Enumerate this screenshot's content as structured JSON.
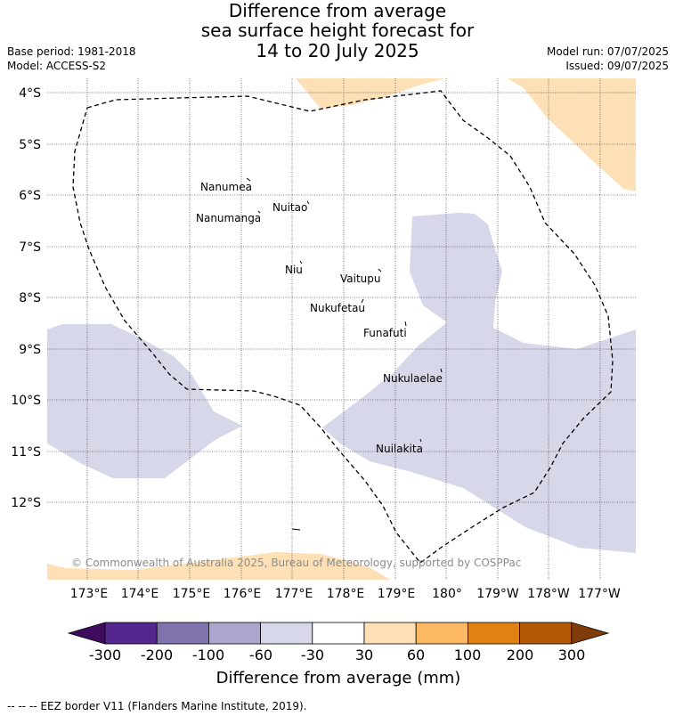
{
  "title": {
    "line1": "Difference from average",
    "line2": "sea surface height forecast for",
    "line3": "14 to 20 July 2025"
  },
  "meta": {
    "base_period": "Base period: 1981-2018",
    "model": "Model: ACCESS-S2",
    "model_run": "Model run: 07/07/2025",
    "issued": "Issued: 09/07/2025"
  },
  "map": {
    "lat_labels": [
      "4°S",
      "5°S",
      "6°S",
      "7°S",
      "8°S",
      "9°S",
      "10°S",
      "11°S",
      "12°S"
    ],
    "lon_labels": [
      "173°E",
      "174°E",
      "175°E",
      "176°E",
      "177°E",
      "178°E",
      "179°E",
      "180°",
      "179°W",
      "178°W",
      "177°W"
    ],
    "places": [
      "Nanumea",
      "Nuitao",
      "Nanumanga",
      "Niu",
      "Vaitupu",
      "Nukufetau",
      "Funafuti",
      "Nukulaelae",
      "Nuilakita"
    ],
    "copyright": "© Commonwealth of Australia 2025, Bureau of Meteorology, supported by COSPPac",
    "colors": {
      "negative_light": "#d7d7ea",
      "positive_light": "#fde0b6",
      "eez_border": "#000000"
    }
  },
  "colorbar": {
    "labels": [
      "-300",
      "-200",
      "-100",
      "-60",
      "-30",
      "30",
      "60",
      "100",
      "200",
      "300"
    ],
    "colors": [
      "#3f0b5c",
      "#54278f",
      "#7f72ad",
      "#aca6cf",
      "#d7d7ea",
      "#ffffff",
      "#fde0b6",
      "#fdb863",
      "#e08213",
      "#b35806",
      "#7f3b08"
    ],
    "title": "Difference from average (mm)"
  },
  "footnote": "--  --  -- EEZ border V11 (Flanders Marine Institute, 2019)."
}
